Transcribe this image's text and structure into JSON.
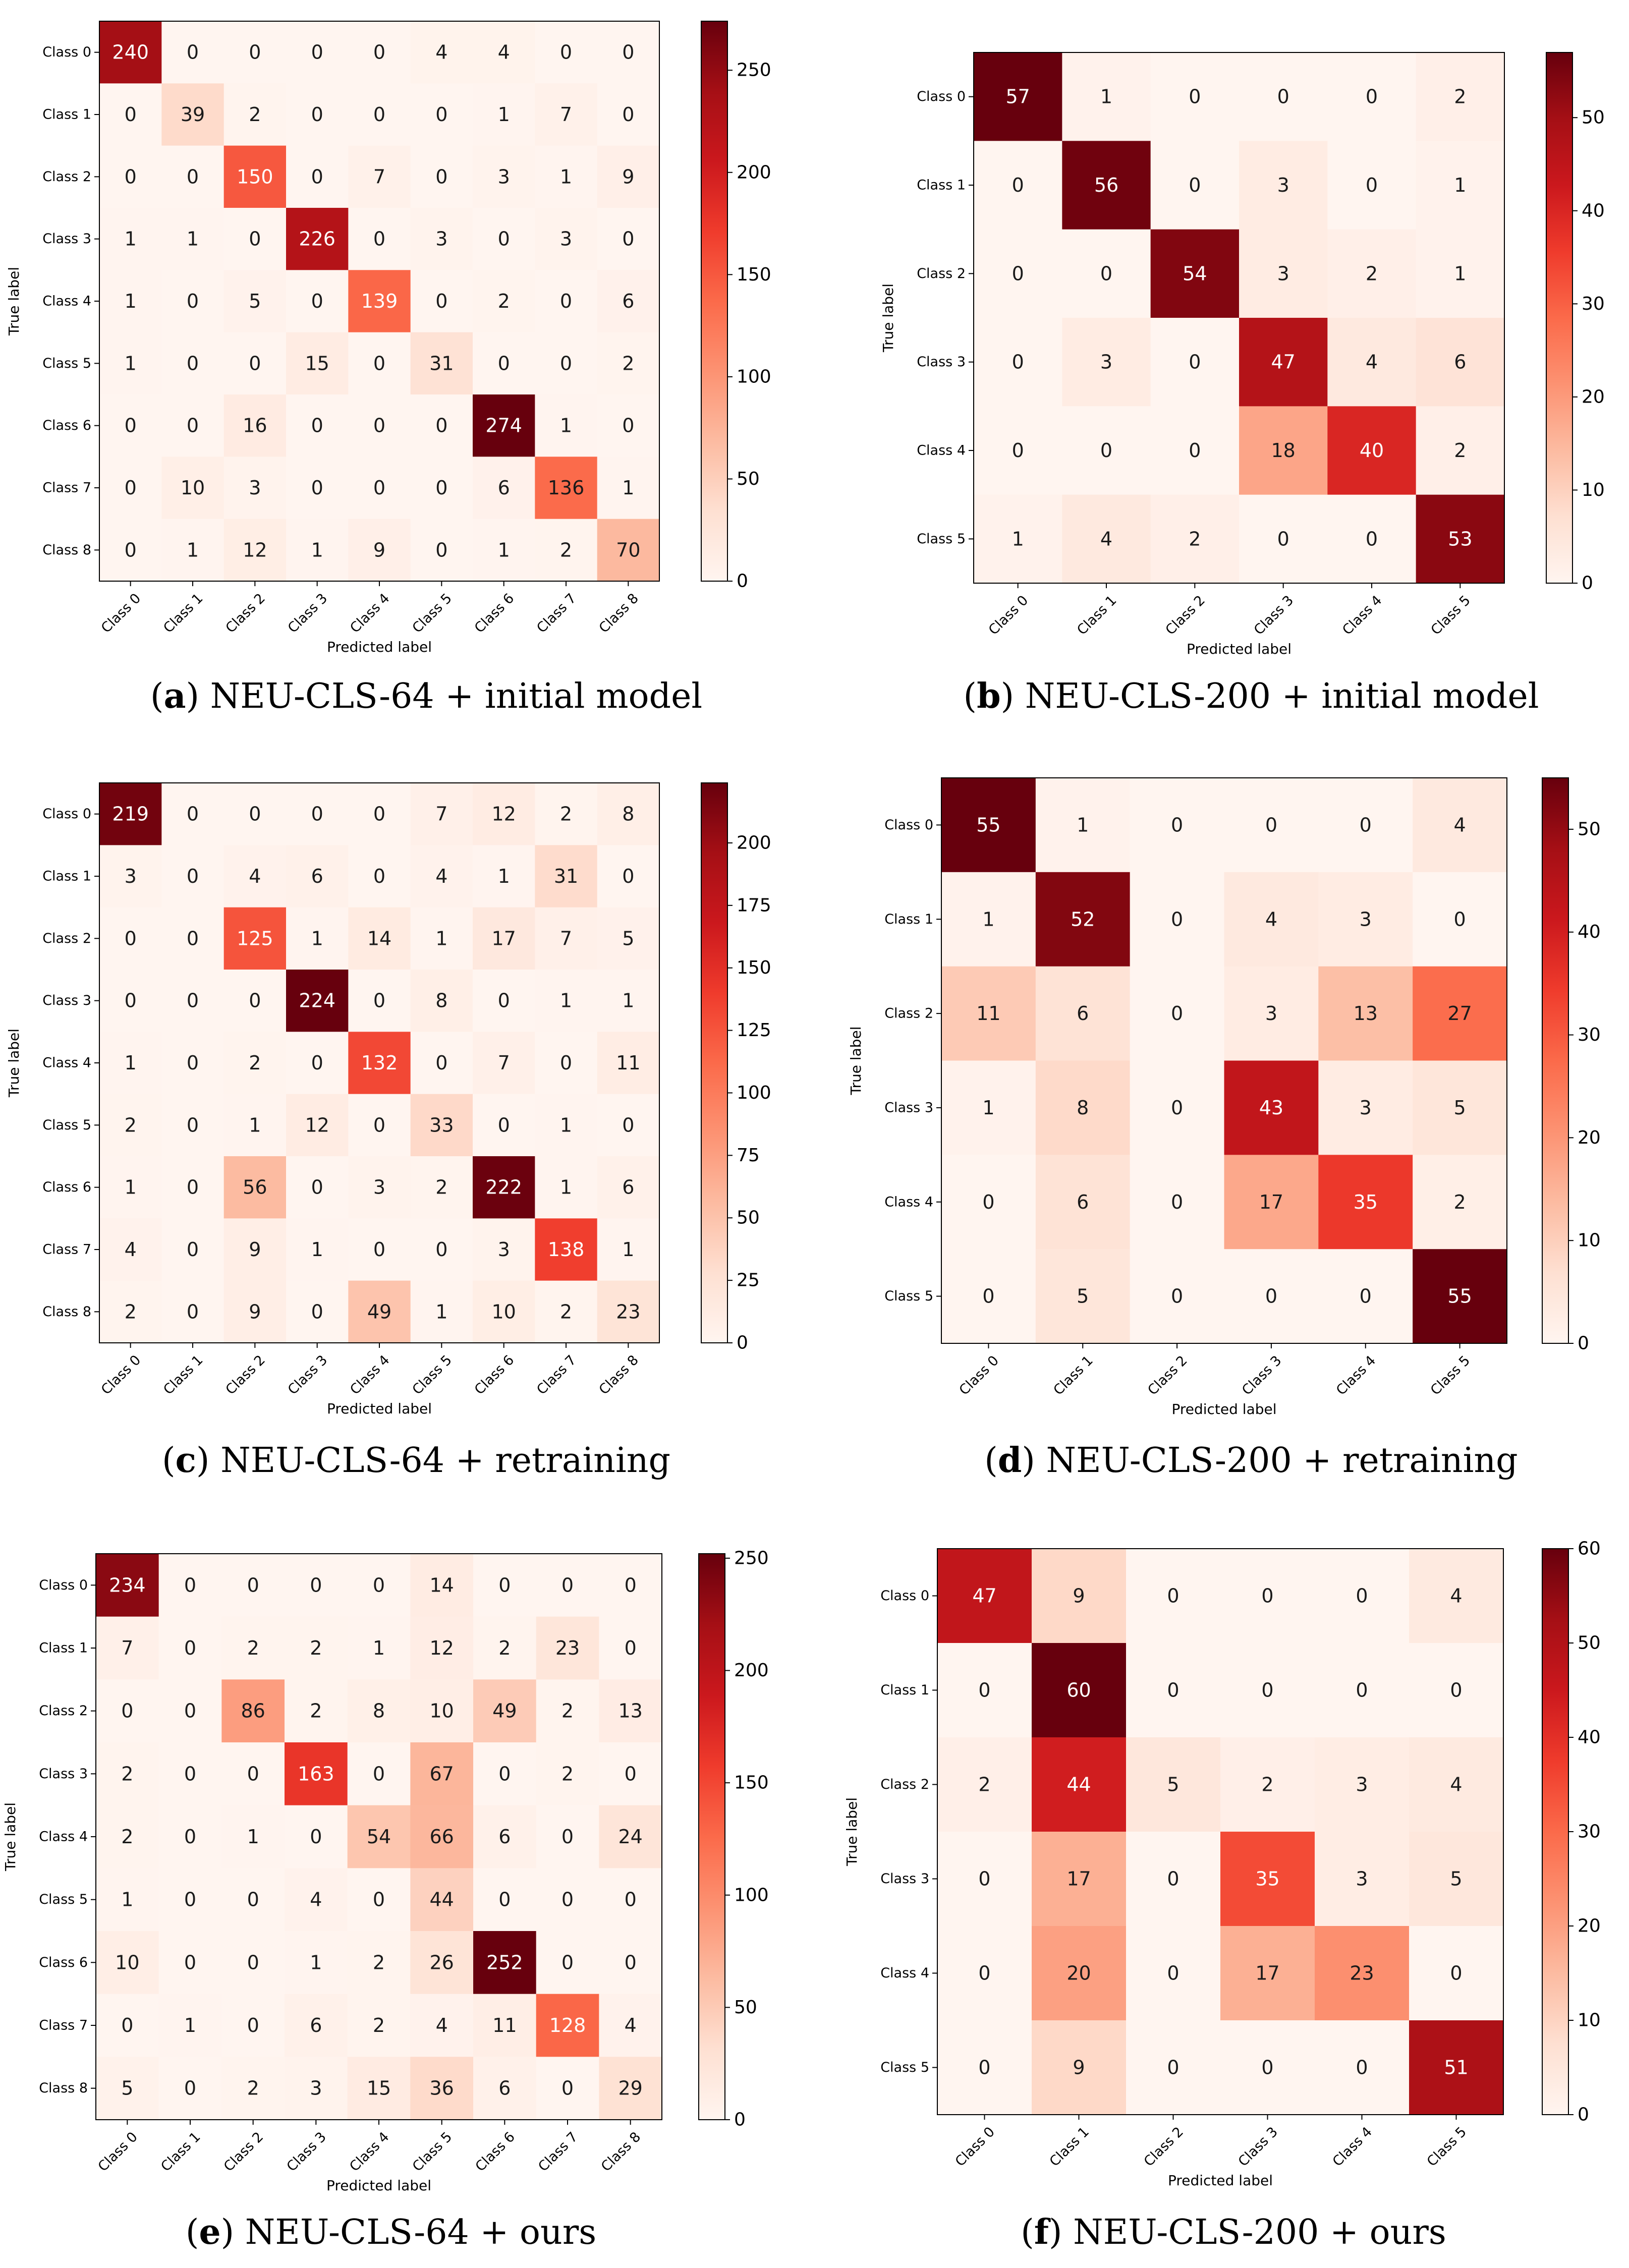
{
  "chart_data": [
    {
      "type": "heatmap",
      "id": "a",
      "panel_label": "a",
      "caption": "NEU-CLS-64 + initial model",
      "xlabel": "Predicted label",
      "ylabel": "True label",
      "x_categories": [
        "Class 0",
        "Class 1",
        "Class 2",
        "Class 3",
        "Class 4",
        "Class 5",
        "Class 6",
        "Class 7",
        "Class 8"
      ],
      "y_categories": [
        "Class 0",
        "Class 1",
        "Class 2",
        "Class 3",
        "Class 4",
        "Class 5",
        "Class 6",
        "Class 7",
        "Class 8"
      ],
      "values": [
        [
          240,
          0,
          0,
          0,
          0,
          4,
          4,
          0,
          0
        ],
        [
          0,
          39,
          2,
          0,
          0,
          0,
          1,
          7,
          0
        ],
        [
          0,
          0,
          150,
          0,
          7,
          0,
          3,
          1,
          9
        ],
        [
          1,
          1,
          0,
          226,
          0,
          3,
          0,
          3,
          0
        ],
        [
          1,
          0,
          5,
          0,
          139,
          0,
          2,
          0,
          6
        ],
        [
          1,
          0,
          0,
          15,
          0,
          31,
          0,
          0,
          2
        ],
        [
          0,
          0,
          16,
          0,
          0,
          0,
          274,
          1,
          0
        ],
        [
          0,
          10,
          3,
          0,
          0,
          0,
          6,
          136,
          1
        ],
        [
          0,
          1,
          12,
          1,
          9,
          0,
          1,
          2,
          70
        ]
      ],
      "colorbar_max": 274,
      "colorbar_ticks": [
        0,
        50,
        100,
        150,
        200,
        250
      ],
      "colormap": [
        "#fff5f0",
        "#fee0d2",
        "#fcbba1",
        "#fc9272",
        "#fb6a4a",
        "#ef3b2c",
        "#cb181d",
        "#a50f15",
        "#67000d"
      ]
    },
    {
      "type": "heatmap",
      "id": "b",
      "panel_label": "b",
      "caption": "NEU-CLS-200 + initial model",
      "xlabel": "Predicted label",
      "ylabel": "True label",
      "x_categories": [
        "Class 0",
        "Class 1",
        "Class 2",
        "Class 3",
        "Class 4",
        "Class 5"
      ],
      "y_categories": [
        "Class 0",
        "Class 1",
        "Class 2",
        "Class 3",
        "Class 4",
        "Class 5"
      ],
      "values": [
        [
          57,
          1,
          0,
          0,
          0,
          2
        ],
        [
          0,
          56,
          0,
          3,
          0,
          1
        ],
        [
          0,
          0,
          54,
          3,
          2,
          1
        ],
        [
          0,
          3,
          0,
          47,
          4,
          6
        ],
        [
          0,
          0,
          0,
          18,
          40,
          2
        ],
        [
          1,
          4,
          2,
          0,
          0,
          53
        ]
      ],
      "colorbar_max": 57,
      "colorbar_ticks": [
        0,
        10,
        20,
        30,
        40,
        50
      ],
      "colormap": [
        "#fff5f0",
        "#fee0d2",
        "#fcbba1",
        "#fc9272",
        "#fb6a4a",
        "#ef3b2c",
        "#cb181d",
        "#a50f15",
        "#67000d"
      ]
    },
    {
      "type": "heatmap",
      "id": "c",
      "panel_label": "c",
      "caption": "NEU-CLS-64 + retraining",
      "xlabel": "Predicted label",
      "ylabel": "True label",
      "x_categories": [
        "Class 0",
        "Class 1",
        "Class 2",
        "Class 3",
        "Class 4",
        "Class 5",
        "Class 6",
        "Class 7",
        "Class 8"
      ],
      "y_categories": [
        "Class 0",
        "Class 1",
        "Class 2",
        "Class 3",
        "Class 4",
        "Class 5",
        "Class 6",
        "Class 7",
        "Class 8"
      ],
      "values": [
        [
          219,
          0,
          0,
          0,
          0,
          7,
          12,
          2,
          8
        ],
        [
          3,
          0,
          4,
          6,
          0,
          4,
          1,
          31,
          0
        ],
        [
          0,
          0,
          125,
          1,
          14,
          1,
          17,
          7,
          5
        ],
        [
          0,
          0,
          0,
          224,
          0,
          8,
          0,
          1,
          1
        ],
        [
          1,
          0,
          2,
          0,
          132,
          0,
          7,
          0,
          11
        ],
        [
          2,
          0,
          1,
          12,
          0,
          33,
          0,
          1,
          0
        ],
        [
          1,
          0,
          56,
          0,
          3,
          2,
          222,
          1,
          6
        ],
        [
          4,
          0,
          9,
          1,
          0,
          0,
          3,
          138,
          1
        ],
        [
          2,
          0,
          9,
          0,
          49,
          1,
          10,
          2,
          23
        ]
      ],
      "colorbar_max": 224,
      "colorbar_ticks": [
        0,
        25,
        50,
        75,
        100,
        125,
        150,
        175,
        200
      ],
      "colormap": [
        "#fff5f0",
        "#fee0d2",
        "#fcbba1",
        "#fc9272",
        "#fb6a4a",
        "#ef3b2c",
        "#cb181d",
        "#a50f15",
        "#67000d"
      ]
    },
    {
      "type": "heatmap",
      "id": "d",
      "panel_label": "d",
      "caption": "NEU-CLS-200 + retraining",
      "xlabel": "Predicted label",
      "ylabel": "True label",
      "x_categories": [
        "Class 0",
        "Class 1",
        "Class 2",
        "Class 3",
        "Class 4",
        "Class 5"
      ],
      "y_categories": [
        "Class 0",
        "Class 1",
        "Class 2",
        "Class 3",
        "Class 4",
        "Class 5"
      ],
      "values": [
        [
          55,
          1,
          0,
          0,
          0,
          4
        ],
        [
          1,
          52,
          0,
          4,
          3,
          0
        ],
        [
          11,
          6,
          0,
          3,
          13,
          27
        ],
        [
          1,
          8,
          0,
          43,
          3,
          5
        ],
        [
          0,
          6,
          0,
          17,
          35,
          2
        ],
        [
          0,
          5,
          0,
          0,
          0,
          55
        ]
      ],
      "colorbar_max": 55,
      "colorbar_ticks": [
        0,
        10,
        20,
        30,
        40,
        50
      ],
      "colormap": [
        "#fff5f0",
        "#fee0d2",
        "#fcbba1",
        "#fc9272",
        "#fb6a4a",
        "#ef3b2c",
        "#cb181d",
        "#a50f15",
        "#67000d"
      ]
    },
    {
      "type": "heatmap",
      "id": "e",
      "panel_label": "e",
      "caption": "NEU-CLS-64 + ours",
      "xlabel": "Predicted label",
      "ylabel": "True label",
      "x_categories": [
        "Class 0",
        "Class 1",
        "Class 2",
        "Class 3",
        "Class 4",
        "Class 5",
        "Class 6",
        "Class 7",
        "Class 8"
      ],
      "y_categories": [
        "Class 0",
        "Class 1",
        "Class 2",
        "Class 3",
        "Class 4",
        "Class 5",
        "Class 6",
        "Class 7",
        "Class 8"
      ],
      "values": [
        [
          234,
          0,
          0,
          0,
          0,
          14,
          0,
          0,
          0
        ],
        [
          7,
          0,
          2,
          2,
          1,
          12,
          2,
          23,
          0
        ],
        [
          0,
          0,
          86,
          2,
          8,
          10,
          49,
          2,
          13
        ],
        [
          2,
          0,
          0,
          163,
          0,
          67,
          0,
          2,
          0
        ],
        [
          2,
          0,
          1,
          0,
          54,
          66,
          6,
          0,
          24
        ],
        [
          1,
          0,
          0,
          4,
          0,
          44,
          0,
          0,
          0
        ],
        [
          10,
          0,
          0,
          1,
          2,
          26,
          252,
          0,
          0
        ],
        [
          0,
          1,
          0,
          6,
          2,
          4,
          11,
          128,
          4
        ],
        [
          5,
          0,
          2,
          3,
          15,
          36,
          6,
          0,
          29
        ]
      ],
      "colorbar_max": 252,
      "colorbar_ticks": [
        0,
        50,
        100,
        150,
        200,
        250
      ],
      "colormap": [
        "#fff5f0",
        "#fee0d2",
        "#fcbba1",
        "#fc9272",
        "#fb6a4a",
        "#ef3b2c",
        "#cb181d",
        "#a50f15",
        "#67000d"
      ]
    },
    {
      "type": "heatmap",
      "id": "f",
      "panel_label": "f",
      "caption": "NEU-CLS-200 + ours",
      "xlabel": "Predicted label",
      "ylabel": "True label",
      "x_categories": [
        "Class 0",
        "Class 1",
        "Class 2",
        "Class 3",
        "Class 4",
        "Class 5"
      ],
      "y_categories": [
        "Class 0",
        "Class 1",
        "Class 2",
        "Class 3",
        "Class 4",
        "Class 5"
      ],
      "values": [
        [
          47,
          9,
          0,
          0,
          0,
          4
        ],
        [
          0,
          60,
          0,
          0,
          0,
          0
        ],
        [
          2,
          44,
          5,
          2,
          3,
          4
        ],
        [
          0,
          17,
          0,
          35,
          3,
          5
        ],
        [
          0,
          20,
          0,
          17,
          23,
          0
        ],
        [
          0,
          9,
          0,
          0,
          0,
          51
        ]
      ],
      "colorbar_max": 60,
      "colorbar_ticks": [
        0,
        10,
        20,
        30,
        40,
        50,
        60
      ],
      "colormap": [
        "#fff5f0",
        "#fee0d2",
        "#fcbba1",
        "#fc9272",
        "#fb6a4a",
        "#ef3b2c",
        "#cb181d",
        "#a50f15",
        "#67000d"
      ]
    }
  ]
}
